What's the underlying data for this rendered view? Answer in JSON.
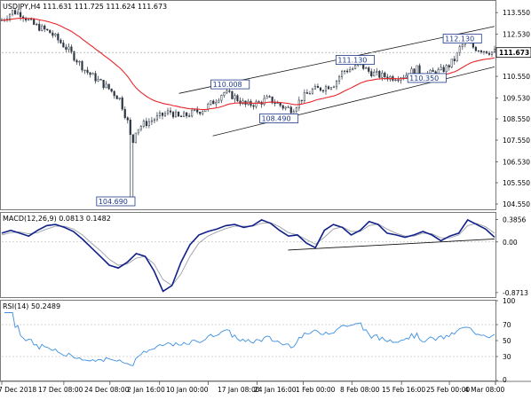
{
  "chart_data": [
    {
      "type": "candlestick",
      "title": "USDJPY,H4  111.631 111.725 111.624 111.673",
      "ylim": [
        104.3,
        114.1
      ],
      "y_ticks": [
        "113.550",
        "112.530",
        "111.673",
        "110.550",
        "109.530",
        "108.550",
        "107.550",
        "106.530",
        "105.550",
        "104.550"
      ],
      "last_price": "111.673",
      "x_ticks": [
        "7 Dec 2018",
        "17 Dec 08:00",
        "24 Dec 08:00",
        "2 Jan 16:00",
        "10 Jan 00:00",
        "17 Jan 08:00",
        "24 Jan 16:00",
        "1 Feb 00:00",
        "8 Feb 08:00",
        "15 Feb 16:00",
        "25 Feb 00:00",
        "4 Mar 08:00"
      ],
      "price_labels": [
        "104.690",
        "110.008",
        "108.490",
        "111.130",
        "110.350",
        "112.130"
      ],
      "anchor_points": [
        {
          "t": 0,
          "v": 113.2
        },
        {
          "t": 12,
          "v": 113.6
        },
        {
          "t": 22,
          "v": 113.5
        },
        {
          "t": 35,
          "v": 113.0
        },
        {
          "t": 55,
          "v": 112.6
        },
        {
          "t": 75,
          "v": 111.8
        },
        {
          "t": 95,
          "v": 110.8
        },
        {
          "t": 120,
          "v": 110.0
        },
        {
          "t": 133,
          "v": 109.5
        },
        {
          "t": 143,
          "v": 108.3
        },
        {
          "t": 147,
          "v": 107.2
        },
        {
          "t": 150,
          "v": 108.0
        },
        {
          "t": 160,
          "v": 108.3
        },
        {
          "t": 175,
          "v": 108.6
        },
        {
          "t": 190,
          "v": 108.9
        },
        {
          "t": 200,
          "v": 108.6
        },
        {
          "t": 213,
          "v": 108.8
        },
        {
          "t": 228,
          "v": 109.0
        },
        {
          "t": 240,
          "v": 109.4
        },
        {
          "t": 250,
          "v": 109.8
        },
        {
          "t": 262,
          "v": 109.6
        },
        {
          "t": 275,
          "v": 109.2
        },
        {
          "t": 290,
          "v": 109.3
        },
        {
          "t": 300,
          "v": 109.5
        },
        {
          "t": 310,
          "v": 109.3
        },
        {
          "t": 318,
          "v": 109.1
        },
        {
          "t": 328,
          "v": 109.0
        },
        {
          "t": 338,
          "v": 109.5
        },
        {
          "t": 350,
          "v": 109.9
        },
        {
          "t": 362,
          "v": 110.0
        },
        {
          "t": 375,
          "v": 110.2
        },
        {
          "t": 385,
          "v": 110.8
        },
        {
          "t": 395,
          "v": 110.9
        },
        {
          "t": 405,
          "v": 111.1
        },
        {
          "t": 413,
          "v": 110.8
        },
        {
          "t": 425,
          "v": 110.6
        },
        {
          "t": 440,
          "v": 110.5
        },
        {
          "t": 455,
          "v": 110.6
        },
        {
          "t": 468,
          "v": 110.9
        },
        {
          "t": 475,
          "v": 110.6
        },
        {
          "t": 485,
          "v": 110.7
        },
        {
          "t": 495,
          "v": 110.8
        },
        {
          "t": 503,
          "v": 111.0
        },
        {
          "t": 512,
          "v": 111.4
        },
        {
          "t": 518,
          "v": 112.0
        },
        {
          "t": 525,
          "v": 112.1
        },
        {
          "t": 533,
          "v": 111.9
        },
        {
          "t": 542,
          "v": 111.8
        },
        {
          "t": 552,
          "v": 111.7
        }
      ],
      "spike_low": 104.69,
      "ma_color": "#e8262b",
      "candle_color": "#2b3440",
      "channel_color": "#1a1a1a"
    },
    {
      "type": "line",
      "title": "MACD(12,26,9) 0.0813 0.1482",
      "ylim": [
        -0.95,
        0.5
      ],
      "y_ticks": [
        "0.3856",
        "0.00",
        "-0.8713"
      ],
      "series": [
        {
          "name": "MACD",
          "color": "#10208a",
          "values": [
            0.15,
            0.2,
            0.15,
            0.1,
            0.2,
            0.28,
            0.3,
            0.25,
            0.18,
            0.05,
            -0.1,
            -0.25,
            -0.4,
            -0.45,
            -0.35,
            -0.2,
            -0.25,
            -0.5,
            -0.85,
            -0.75,
            -0.35,
            -0.05,
            0.12,
            0.18,
            0.22,
            0.28,
            0.3,
            0.25,
            0.28,
            0.38,
            0.32,
            0.2,
            0.1,
            0.12,
            -0.02,
            -0.1,
            0.2,
            0.3,
            0.25,
            0.12,
            0.2,
            0.35,
            0.3,
            0.15,
            0.12,
            0.08,
            0.12,
            0.18,
            0.12,
            0.02,
            0.1,
            0.15,
            0.38,
            0.3,
            0.22,
            0.08
          ]
        },
        {
          "name": "Signal",
          "color": "#9aa0a6",
          "values": [
            0.12,
            0.16,
            0.17,
            0.14,
            0.16,
            0.22,
            0.27,
            0.27,
            0.22,
            0.12,
            -0.02,
            -0.15,
            -0.3,
            -0.4,
            -0.38,
            -0.28,
            -0.25,
            -0.38,
            -0.65,
            -0.75,
            -0.55,
            -0.25,
            -0.02,
            0.1,
            0.17,
            0.23,
            0.27,
            0.27,
            0.27,
            0.32,
            0.33,
            0.26,
            0.16,
            0.12,
            0.04,
            -0.04,
            0.08,
            0.22,
            0.26,
            0.18,
            0.18,
            0.28,
            0.31,
            0.22,
            0.15,
            0.1,
            0.1,
            0.15,
            0.14,
            0.07,
            0.07,
            0.12,
            0.28,
            0.32,
            0.26,
            0.15
          ]
        }
      ]
    },
    {
      "type": "line",
      "title": "RSI(14) 50.2489",
      "ylim": [
        0,
        100
      ],
      "y_ticks": [
        "100",
        "70",
        "50",
        "30",
        "0"
      ],
      "series": [
        {
          "name": "RSI",
          "color": "#3d8fe0"
        }
      ]
    }
  ]
}
